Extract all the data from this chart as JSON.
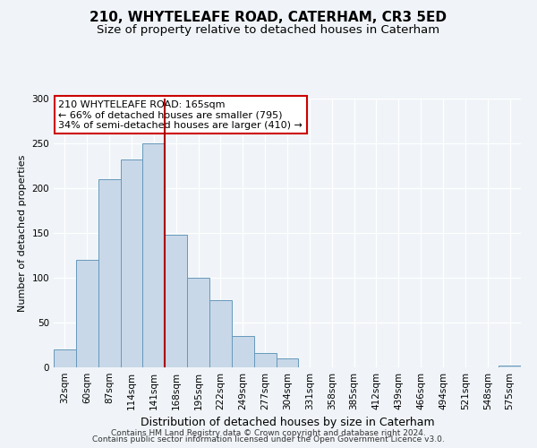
{
  "title": "210, WHYTELEAFE ROAD, CATERHAM, CR3 5ED",
  "subtitle": "Size of property relative to detached houses in Caterham",
  "xlabel": "Distribution of detached houses by size in Caterham",
  "ylabel": "Number of detached properties",
  "bar_labels": [
    "32sqm",
    "60sqm",
    "87sqm",
    "114sqm",
    "141sqm",
    "168sqm",
    "195sqm",
    "222sqm",
    "249sqm",
    "277sqm",
    "304sqm",
    "331sqm",
    "358sqm",
    "385sqm",
    "412sqm",
    "439sqm",
    "466sqm",
    "494sqm",
    "521sqm",
    "548sqm",
    "575sqm"
  ],
  "bar_heights": [
    20,
    120,
    210,
    232,
    250,
    148,
    100,
    75,
    35,
    16,
    10,
    0,
    0,
    0,
    0,
    0,
    0,
    0,
    0,
    0,
    2
  ],
  "bar_color": "#c8d8e8",
  "bar_edge_color": "#6699bb",
  "vline_x_index": 4.5,
  "vline_color": "#aa0000",
  "annotation_line1": "210 WHYTELEAFE ROAD: 165sqm",
  "annotation_line2": "← 66% of detached houses are smaller (795)",
  "annotation_line3": "34% of semi-detached houses are larger (410) →",
  "annotation_box_color": "#ffffff",
  "annotation_box_edge_color": "#cc0000",
  "ylim": [
    0,
    300
  ],
  "yticks": [
    0,
    50,
    100,
    150,
    200,
    250,
    300
  ],
  "footer_line1": "Contains HM Land Registry data © Crown copyright and database right 2024.",
  "footer_line2": "Contains public sector information licensed under the Open Government Licence v3.0.",
  "bg_color": "#f0f4f8",
  "plot_bg_color": "#f0f4f8",
  "title_fontsize": 11,
  "subtitle_fontsize": 9.5,
  "xlabel_fontsize": 9,
  "ylabel_fontsize": 8,
  "tick_fontsize": 7.5,
  "annotation_fontsize": 8,
  "footer_fontsize": 6.5
}
